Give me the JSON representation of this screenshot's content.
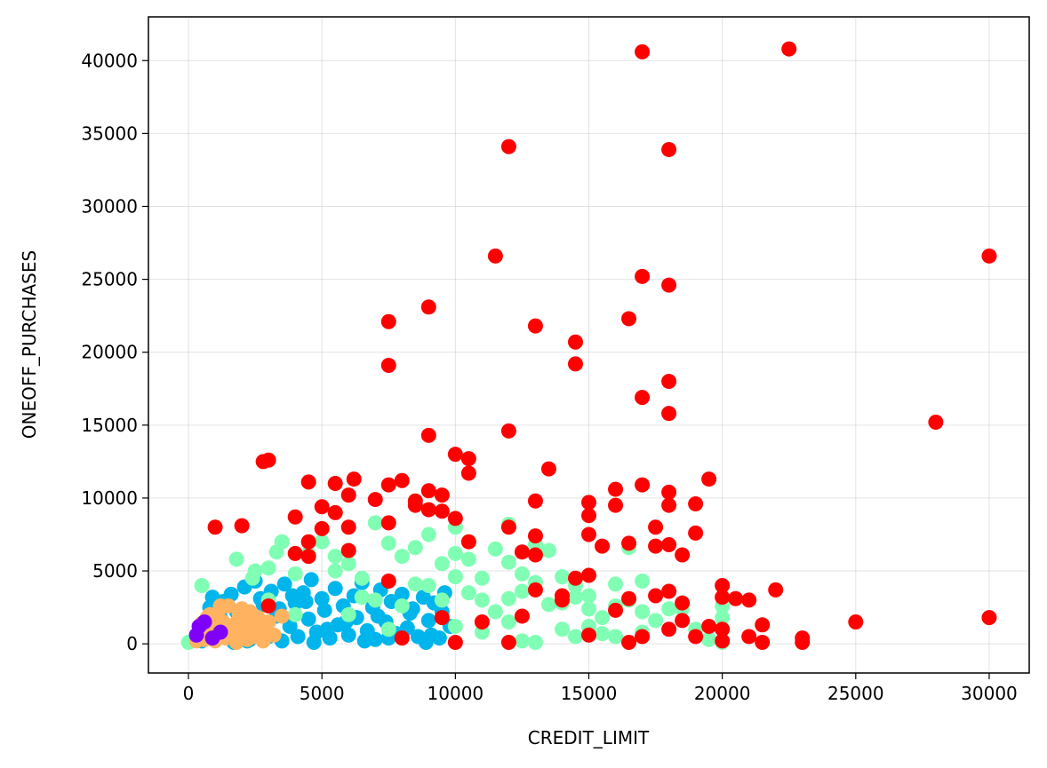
{
  "chart_data": {
    "type": "scatter",
    "title": "",
    "xlabel": "CREDIT_LIMIT",
    "ylabel": "ONEOFF_PURCHASES",
    "xlim": [
      -1500,
      31500
    ],
    "ylim": [
      -2000,
      43000
    ],
    "xticks": [
      0,
      5000,
      10000,
      15000,
      20000,
      25000,
      30000
    ],
    "yticks": [
      0,
      5000,
      10000,
      15000,
      20000,
      25000,
      30000,
      35000,
      40000
    ],
    "grid": true,
    "legend": "none",
    "colors": {
      "cluster_red": "#ff0000",
      "cluster_green": "#80ffb4",
      "cluster_blue": "#00b5eb",
      "cluster_orange": "#ffb360",
      "cluster_purple": "#8000ff"
    },
    "series": [
      {
        "color": "#00b5eb",
        "points": [
          [
            500,
            200
          ],
          [
            600,
            800
          ],
          [
            700,
            1500
          ],
          [
            800,
            2500
          ],
          [
            900,
            3200
          ],
          [
            1000,
            400
          ],
          [
            1200,
            1800
          ],
          [
            1300,
            2900
          ],
          [
            1500,
            600
          ],
          [
            1600,
            3400
          ],
          [
            1800,
            2200
          ],
          [
            2000,
            1000
          ],
          [
            2100,
            3900
          ],
          [
            2300,
            300
          ],
          [
            2500,
            4300
          ],
          [
            2600,
            1400
          ],
          [
            2800,
            2700
          ],
          [
            3000,
            500
          ],
          [
            3100,
            3600
          ],
          [
            3300,
            1900
          ],
          [
            3500,
            200
          ],
          [
            3600,
            4100
          ],
          [
            3800,
            1200
          ],
          [
            4000,
            2800
          ],
          [
            4100,
            500
          ],
          [
            4300,
            3500
          ],
          [
            4500,
            1700
          ],
          [
            4600,
            4400
          ],
          [
            4800,
            800
          ],
          [
            5000,
            3100
          ],
          [
            5100,
            2300
          ],
          [
            5300,
            400
          ],
          [
            5500,
            3800
          ],
          [
            5600,
            1300
          ],
          [
            5800,
            2600
          ],
          [
            6000,
            600
          ],
          [
            6200,
            3300
          ],
          [
            6300,
            1800
          ],
          [
            6500,
            4200
          ],
          [
            6700,
            900
          ],
          [
            6900,
            2500
          ],
          [
            7000,
            300
          ],
          [
            7200,
            3700
          ],
          [
            7400,
            1500
          ],
          [
            7600,
            2900
          ],
          [
            7800,
            700
          ],
          [
            8000,
            3400
          ],
          [
            8200,
            1100
          ],
          [
            8400,
            2400
          ],
          [
            8600,
            500
          ],
          [
            8800,
            3200
          ],
          [
            9000,
            1600
          ],
          [
            9200,
            2800
          ],
          [
            9400,
            400
          ],
          [
            9600,
            3500
          ],
          [
            9800,
            1200
          ],
          [
            2200,
            200
          ],
          [
            3400,
            2400
          ],
          [
            4700,
            100
          ],
          [
            5900,
            1500
          ],
          [
            7100,
            1900
          ],
          [
            8300,
            2100
          ],
          [
            9100,
            600
          ],
          [
            6600,
            200
          ],
          [
            4400,
            2900
          ],
          [
            1700,
            100
          ],
          [
            2700,
            3100
          ],
          [
            3900,
            3300
          ],
          [
            5200,
            1000
          ],
          [
            7500,
            400
          ],
          [
            8900,
            100
          ],
          [
            9500,
            2200
          ]
        ]
      },
      {
        "color": "#80ffb4",
        "points": [
          [
            0,
            100
          ],
          [
            500,
            4000
          ],
          [
            1200,
            500
          ],
          [
            1800,
            5800
          ],
          [
            2400,
            4500
          ],
          [
            3000,
            5200
          ],
          [
            3300,
            6300
          ],
          [
            3500,
            7000
          ],
          [
            4000,
            4800
          ],
          [
            4500,
            6200
          ],
          [
            5000,
            7000
          ],
          [
            5500,
            5000
          ],
          [
            6000,
            5500
          ],
          [
            6500,
            4500
          ],
          [
            7000,
            8300
          ],
          [
            7500,
            6900
          ],
          [
            8000,
            6000
          ],
          [
            8500,
            6600
          ],
          [
            9000,
            7500
          ],
          [
            9500,
            5500
          ],
          [
            10000,
            6200
          ],
          [
            10000,
            8000
          ],
          [
            10500,
            5800
          ],
          [
            11000,
            4500
          ],
          [
            11500,
            6500
          ],
          [
            12000,
            8200
          ],
          [
            12000,
            5600
          ],
          [
            12500,
            4800
          ],
          [
            13000,
            6800
          ],
          [
            13000,
            100
          ],
          [
            13500,
            6400
          ],
          [
            14000,
            4600
          ],
          [
            14500,
            3200
          ],
          [
            15000,
            2400
          ],
          [
            15500,
            1800
          ],
          [
            16000,
            4100
          ],
          [
            16500,
            6600
          ],
          [
            16500,
            3000
          ],
          [
            17000,
            4300
          ],
          [
            17000,
            2200
          ],
          [
            17500,
            1600
          ],
          [
            18000,
            2400
          ],
          [
            18500,
            2400
          ],
          [
            19000,
            1000
          ],
          [
            19500,
            300
          ],
          [
            20000,
            2600
          ],
          [
            20000,
            1800
          ],
          [
            20000,
            100
          ],
          [
            11000,
            3000
          ],
          [
            11500,
            2200
          ],
          [
            12000,
            1500
          ],
          [
            12500,
            3600
          ],
          [
            13500,
            2700
          ],
          [
            14000,
            1000
          ],
          [
            14500,
            500
          ],
          [
            15000,
            3300
          ],
          [
            15500,
            700
          ],
          [
            16000,
            2600
          ],
          [
            7000,
            3000
          ],
          [
            8000,
            2600
          ],
          [
            9000,
            4000
          ],
          [
            9500,
            3000
          ],
          [
            10500,
            3500
          ],
          [
            11000,
            800
          ],
          [
            12000,
            3100
          ],
          [
            13000,
            4200
          ],
          [
            14000,
            2800
          ],
          [
            15000,
            1200
          ],
          [
            16000,
            500
          ],
          [
            17000,
            800
          ],
          [
            6000,
            2000
          ],
          [
            6500,
            3200
          ],
          [
            7500,
            1000
          ],
          [
            8500,
            4100
          ],
          [
            10000,
            1200
          ],
          [
            12500,
            200
          ],
          [
            14500,
            4000
          ],
          [
            4000,
            2000
          ],
          [
            3000,
            3000
          ],
          [
            2500,
            5000
          ],
          [
            5500,
            6000
          ],
          [
            10000,
            4600
          ]
        ]
      },
      {
        "color": "#ffb360",
        "points": [
          [
            300,
            200
          ],
          [
            400,
            800
          ],
          [
            500,
            1400
          ],
          [
            600,
            300
          ],
          [
            700,
            1800
          ],
          [
            800,
            600
          ],
          [
            900,
            1100
          ],
          [
            1000,
            200
          ],
          [
            1100,
            2100
          ],
          [
            1200,
            900
          ],
          [
            1300,
            1500
          ],
          [
            1400,
            400
          ],
          [
            1500,
            2600
          ],
          [
            1600,
            700
          ],
          [
            1700,
            1300
          ],
          [
            1800,
            100
          ],
          [
            1900,
            2000
          ],
          [
            2000,
            800
          ],
          [
            2100,
            1600
          ],
          [
            2200,
            300
          ],
          [
            2300,
            2200
          ],
          [
            2400,
            1000
          ],
          [
            2500,
            500
          ],
          [
            2600,
            1800
          ],
          [
            2700,
            1200
          ],
          [
            2800,
            200
          ],
          [
            2900,
            900
          ],
          [
            3000,
            1500
          ],
          [
            3200,
            600
          ],
          [
            3500,
            1900
          ],
          [
            1200,
            2600
          ],
          [
            800,
            2000
          ],
          [
            600,
            1000
          ],
          [
            1400,
            1200
          ],
          [
            2000,
            2400
          ],
          [
            1700,
            500
          ]
        ]
      },
      {
        "color": "#8000ff",
        "points": [
          [
            300,
            600
          ],
          [
            400,
            1200
          ],
          [
            600,
            1500
          ],
          [
            900,
            400
          ],
          [
            1200,
            800
          ]
        ]
      },
      {
        "color": "#ff0000",
        "points": [
          [
            17000,
            40600
          ],
          [
            22500,
            40800
          ],
          [
            12000,
            34100
          ],
          [
            18000,
            33900
          ],
          [
            11500,
            26600
          ],
          [
            30000,
            26600
          ],
          [
            17000,
            25200
          ],
          [
            18000,
            24600
          ],
          [
            9000,
            23100
          ],
          [
            7500,
            22100
          ],
          [
            16500,
            22300
          ],
          [
            13000,
            21800
          ],
          [
            14500,
            20700
          ],
          [
            7500,
            19100
          ],
          [
            14500,
            19200
          ],
          [
            18000,
            18000
          ],
          [
            17000,
            16900
          ],
          [
            18000,
            15800
          ],
          [
            28000,
            15200
          ],
          [
            12000,
            14600
          ],
          [
            9000,
            14300
          ],
          [
            2800,
            12500
          ],
          [
            3000,
            12600
          ],
          [
            10000,
            13000
          ],
          [
            10500,
            12700
          ],
          [
            10500,
            11700
          ],
          [
            13500,
            12000
          ],
          [
            19500,
            11300
          ],
          [
            4500,
            11100
          ],
          [
            5500,
            11000
          ],
          [
            6000,
            10200
          ],
          [
            6200,
            11300
          ],
          [
            7500,
            10900
          ],
          [
            8000,
            11200
          ],
          [
            9000,
            10500
          ],
          [
            9500,
            10200
          ],
          [
            17000,
            10900
          ],
          [
            16000,
            10600
          ],
          [
            18000,
            10400
          ],
          [
            1000,
            8000
          ],
          [
            2000,
            8100
          ],
          [
            4000,
            8700
          ],
          [
            5000,
            9400
          ],
          [
            5500,
            9000
          ],
          [
            6000,
            8000
          ],
          [
            7000,
            9900
          ],
          [
            7500,
            8300
          ],
          [
            8500,
            9500
          ],
          [
            8500,
            9800
          ],
          [
            9000,
            9200
          ],
          [
            9500,
            9100
          ],
          [
            10000,
            8600
          ],
          [
            12000,
            8000
          ],
          [
            13000,
            9800
          ],
          [
            15000,
            9700
          ],
          [
            15000,
            8800
          ],
          [
            16000,
            9500
          ],
          [
            18000,
            9500
          ],
          [
            19000,
            9600
          ],
          [
            17500,
            8000
          ],
          [
            18000,
            6800
          ],
          [
            17500,
            6700
          ],
          [
            18500,
            6100
          ],
          [
            19000,
            7600
          ],
          [
            15000,
            7500
          ],
          [
            15500,
            6700
          ],
          [
            16500,
            6900
          ],
          [
            13000,
            7400
          ],
          [
            10500,
            7000
          ],
          [
            5000,
            7900
          ],
          [
            4500,
            7000
          ],
          [
            4500,
            6000
          ],
          [
            4000,
            6200
          ],
          [
            6000,
            6400
          ],
          [
            12500,
            6300
          ],
          [
            13000,
            6100
          ],
          [
            14500,
            4500
          ],
          [
            15000,
            4700
          ],
          [
            20000,
            4000
          ],
          [
            20000,
            3200
          ],
          [
            20500,
            3100
          ],
          [
            21000,
            3000
          ],
          [
            22000,
            3700
          ],
          [
            17500,
            3300
          ],
          [
            18000,
            3600
          ],
          [
            18500,
            2800
          ],
          [
            18500,
            1600
          ],
          [
            19500,
            1200
          ],
          [
            20000,
            1000
          ],
          [
            19000,
            500
          ],
          [
            21000,
            500
          ],
          [
            21500,
            1300
          ],
          [
            21500,
            100
          ],
          [
            23000,
            400
          ],
          [
            23000,
            100
          ],
          [
            25000,
            1500
          ],
          [
            30000,
            1800
          ],
          [
            16000,
            2300
          ],
          [
            16500,
            3100
          ],
          [
            15000,
            600
          ],
          [
            14000,
            3300
          ],
          [
            13000,
            3700
          ],
          [
            12500,
            1900
          ],
          [
            11000,
            1500
          ],
          [
            10000,
            100
          ],
          [
            7500,
            4300
          ],
          [
            9500,
            1800
          ],
          [
            12000,
            100
          ],
          [
            16500,
            100
          ],
          [
            17000,
            500
          ],
          [
            18000,
            1000
          ],
          [
            20000,
            200
          ],
          [
            3000,
            2600
          ],
          [
            8000,
            400
          ],
          [
            14000,
            3000
          ]
        ]
      }
    ]
  }
}
